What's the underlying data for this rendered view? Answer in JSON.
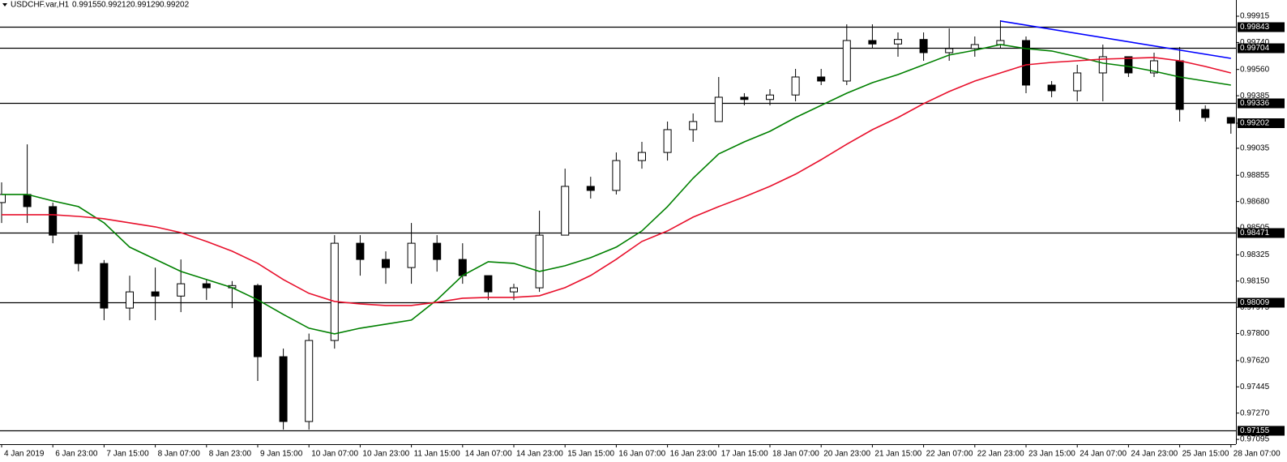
{
  "chart_data": {
    "type": "candlestick",
    "symbol": "USDCHF.var,H1",
    "last_bar": [
      0.99155,
      0.99212,
      0.99129,
      0.99202
    ],
    "categories": [
      "4 Jan 2019",
      null,
      "6 Jan 23:00",
      null,
      "7 Jan 15:00",
      null,
      "8 Jan 07:00",
      null,
      "8 Jan 23:00",
      null,
      "9 Jan 15:00",
      null,
      "10 Jan 07:00",
      null,
      "10 Jan 23:00",
      null,
      "11 Jan 15:00",
      null,
      "14 Jan 07:00",
      null,
      "14 Jan 23:00",
      null,
      "15 Jan 15:00",
      null,
      "16 Jan 07:00",
      null,
      "16 Jan 23:00",
      null,
      "17 Jan 15:00",
      null,
      "18 Jan 07:00",
      null,
      "20 Jan 23:00",
      null,
      "21 Jan 15:00",
      null,
      "22 Jan 07:00",
      null,
      "22 Jan 23:00",
      null,
      "23 Jan 15:00",
      null,
      "24 Jan 07:00",
      null,
      "24 Jan 23:00",
      null,
      "25 Jan 15:00",
      null,
      "28 Jan 07:00"
    ],
    "open": [
      0.98673,
      0.98727,
      0.98646,
      0.98456,
      0.98267,
      0.9797,
      0.98078,
      0.9805,
      0.98132,
      0.98105,
      0.9812,
      0.97646,
      0.97214,
      0.97754,
      0.98402,
      0.98294,
      0.9824,
      0.98402,
      0.98294,
      0.98186,
      0.98078,
      0.98105,
      0.98456,
      0.98781,
      0.98754,
      0.98953,
      0.99007,
      0.99159,
      0.99213,
      0.99375,
      0.9936,
      0.9939,
      0.9951,
      0.99483,
      0.99753,
      0.9973,
      0.9976,
      0.99672,
      0.99699,
      0.99726,
      0.99753,
      0.99456,
      0.99418,
      0.99537,
      0.99645,
      0.99537,
      0.99618,
      0.99294,
      0.9924
    ],
    "high": [
      0.98808,
      0.99061,
      0.98673,
      0.9848,
      0.9829,
      0.98186,
      0.9824,
      0.98294,
      0.98159,
      0.9815,
      0.98132,
      0.977,
      0.978,
      0.98456,
      0.98456,
      0.98348,
      0.98537,
      0.98456,
      0.98402,
      0.98186,
      0.98132,
      0.98619,
      0.98899,
      0.98845,
      0.99007,
      0.99078,
      0.99213,
      0.99267,
      0.9951,
      0.99402,
      0.99429,
      0.99564,
      0.99564,
      0.99861,
      0.99861,
      0.99807,
      0.99807,
      0.99834,
      0.9978,
      0.99888,
      0.9978,
      0.99483,
      0.99591,
      0.99726,
      0.99645,
      0.99672,
      0.9971,
      0.99321,
      0.9924
    ],
    "low": [
      0.98537,
      0.98537,
      0.98402,
      0.98215,
      0.97889,
      0.97889,
      0.97889,
      0.97943,
      0.98024,
      0.9797,
      0.97484,
      0.9716,
      0.9716,
      0.977,
      0.98186,
      0.98132,
      0.98132,
      0.98213,
      0.98132,
      0.98024,
      0.98024,
      0.98078,
      0.98456,
      0.987,
      0.98727,
      0.98899,
      0.98953,
      0.99078,
      0.99213,
      0.99321,
      0.99321,
      0.99348,
      0.99456,
      0.99456,
      0.99699,
      0.99645,
      0.99618,
      0.99618,
      0.99645,
      0.99699,
      0.99402,
      0.99375,
      0.99348,
      0.99348,
      0.9951,
      0.9951,
      0.99213,
      0.99213,
      0.99132
    ],
    "close": [
      0.98727,
      0.98646,
      0.98456,
      0.98267,
      0.9797,
      0.98078,
      0.9805,
      0.98132,
      0.98105,
      0.9812,
      0.97646,
      0.97214,
      0.97754,
      0.98402,
      0.98294,
      0.9824,
      0.98402,
      0.98294,
      0.98186,
      0.98078,
      0.98105,
      0.98456,
      0.98781,
      0.98754,
      0.98953,
      0.99007,
      0.99159,
      0.99213,
      0.99375,
      0.9936,
      0.9939,
      0.9951,
      0.99483,
      0.99753,
      0.9973,
      0.9976,
      0.99672,
      0.99699,
      0.99726,
      0.99753,
      0.99456,
      0.99418,
      0.99537,
      0.99645,
      0.99537,
      0.99618,
      0.99294,
      0.9924,
      0.99202
    ],
    "series": [
      {
        "color": "#008000",
        "values": [
          0.98727,
          0.98727,
          0.98684,
          0.98646,
          0.98538,
          0.98376,
          0.98295,
          0.98214,
          0.9816,
          0.98106,
          0.98025,
          0.97928,
          0.97836,
          0.97798,
          0.97836,
          0.97863,
          0.9789,
          0.98025,
          0.98187,
          0.98279,
          0.98268,
          0.98214,
          0.98252,
          0.98306,
          0.98376,
          0.98484,
          0.98646,
          0.98835,
          0.98997,
          0.99078,
          0.99148,
          0.9924,
          0.99321,
          0.99402,
          0.99472,
          0.99526,
          0.99591,
          0.99656,
          0.99688,
          0.99726,
          0.99699,
          0.99683,
          0.99645,
          0.99602,
          0.9958,
          0.99548,
          0.9951,
          0.99483,
          0.99456
        ]
      },
      {
        "color": "#e8102c",
        "values": [
          0.98592,
          0.98592,
          0.98592,
          0.98581,
          0.98565,
          0.98538,
          0.98511,
          0.98473,
          0.98414,
          0.98349,
          0.98268,
          0.9816,
          0.98068,
          0.98014,
          0.97998,
          0.97987,
          0.97987,
          0.98009,
          0.98036,
          0.98041,
          0.98041,
          0.98052,
          0.98106,
          0.98187,
          0.98295,
          0.98414,
          0.98484,
          0.98576,
          0.98646,
          0.98711,
          0.98781,
          0.98862,
          0.98959,
          0.99062,
          0.99159,
          0.9924,
          0.99332,
          0.99413,
          0.99483,
          0.99537,
          0.99591,
          0.99607,
          0.99618,
          0.99629,
          0.99634,
          0.9964,
          0.99618,
          0.9958,
          0.99537
        ]
      }
    ],
    "trendline": {
      "color": "#0000ff",
      "x": [
        39,
        48
      ],
      "values": [
        0.99883,
        0.99634
      ]
    },
    "levels": [
      0.99843,
      0.99704,
      0.99336,
      0.98471,
      0.98009,
      0.97155
    ],
    "ylim": [
      0.97063,
      1.00023
    ],
    "yticks": [
      0.99915,
      {
        "value": 0.9974,
        "label": "0.99740"
      },
      {
        "value": 0.9956,
        "label": "0.99560"
      },
      0.99385,
      0.99035,
      0.98855,
      {
        "value": 0.9868,
        "label": "0.98680"
      },
      0.98505,
      0.98325,
      {
        "value": 0.9815,
        "label": "0.98150"
      },
      0.97975,
      {
        "value": 0.978,
        "label": "0.97800"
      },
      {
        "value": 0.9762,
        "label": "0.97620"
      },
      0.97445,
      {
        "value": 0.9727,
        "label": "0.97270"
      },
      0.97095
    ],
    "grid": false
  }
}
